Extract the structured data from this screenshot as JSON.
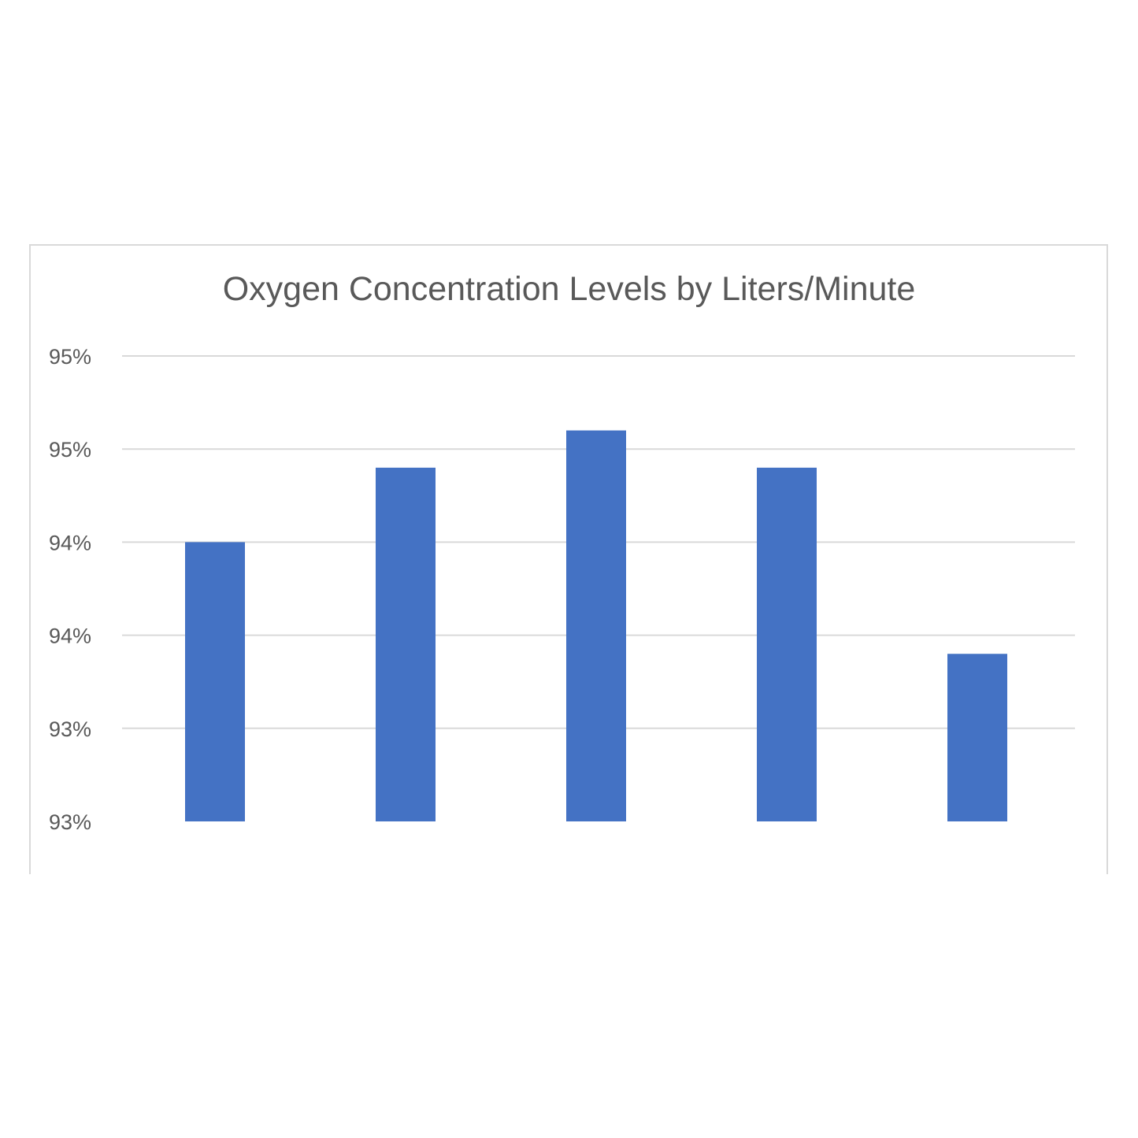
{
  "chart_data": {
    "type": "bar",
    "title": "Oxygen Concentration Levels by Liters/Minute",
    "xlabel": "",
    "ylabel": "",
    "categories": [
      "",
      "",
      "",
      "",
      ""
    ],
    "values": [
      94.3,
      94.7,
      94.9,
      94.7,
      93.7
    ],
    "ylim": [
      92.8,
      95.3
    ],
    "y_ticks": [
      95.3,
      94.8,
      94.3,
      93.8,
      93.3,
      92.8
    ],
    "y_tick_labels": [
      "95%",
      "95%",
      "94%",
      "94%",
      "93%",
      "93%"
    ],
    "bar_color": "#4472c4",
    "grid": true,
    "legend": "none"
  }
}
